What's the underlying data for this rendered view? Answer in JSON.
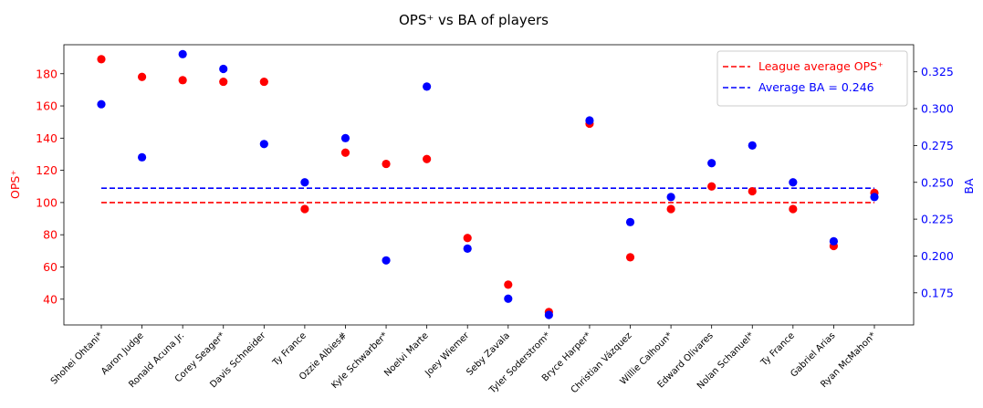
{
  "chart_data": {
    "type": "scatter",
    "title": "OPS⁺ vs BA of players",
    "ylabel_left": "OPS⁺",
    "ylabel_right": "BA",
    "categories": [
      "Shohei Ohtani*",
      "Aaron Judge",
      "Ronald Acuna Jr.",
      "Corey Seager*",
      "Davis Schneider",
      "Ty France",
      "Ozzie Albies#",
      "Kyle Schwarber*",
      "Noelvi Marte",
      "Joey Wiemer",
      "Seby Zavala",
      "Tyler Soderstrom*",
      "Bryce Harper*",
      "Christian Vázquez",
      "Willie Calhoun*",
      "Edward Olivares",
      "Nolan Schanuel*",
      "Ty France",
      "Gabriel Arias",
      "Ryan McMahon*"
    ],
    "series": [
      {
        "name": "OPS⁺",
        "axis": "left",
        "color": "#ff0000",
        "values": [
          189,
          178,
          176,
          175,
          175,
          96,
          131,
          124,
          127,
          78,
          49,
          32,
          149,
          66,
          96,
          110,
          107,
          96,
          73,
          106
        ]
      },
      {
        "name": "BA",
        "axis": "right",
        "color": "#0000ff",
        "values": [
          0.303,
          0.267,
          0.337,
          0.327,
          0.276,
          0.25,
          0.28,
          0.197,
          0.315,
          0.205,
          0.171,
          0.16,
          0.292,
          0.223,
          0.24,
          0.263,
          0.275,
          0.25,
          0.21,
          0.24
        ]
      }
    ],
    "reference_lines": [
      {
        "label": "League average OPS⁺",
        "axis": "left",
        "value": 100,
        "color": "#ff0000",
        "style": "dashed"
      },
      {
        "label": "Average BA = 0.246",
        "axis": "right",
        "value": 0.246,
        "color": "#0000ff",
        "style": "dashed"
      }
    ],
    "ylim_left": [
      24,
      198
    ],
    "ylim_right": [
      0.1532,
      0.3434
    ],
    "yticks_left": [
      "40",
      "60",
      "80",
      "100",
      "120",
      "140",
      "160",
      "180"
    ],
    "yticks_right": [
      "0.175",
      "0.200",
      "0.225",
      "0.250",
      "0.275",
      "0.300",
      "0.325"
    ],
    "grid": false,
    "legend_position": "upper right"
  }
}
